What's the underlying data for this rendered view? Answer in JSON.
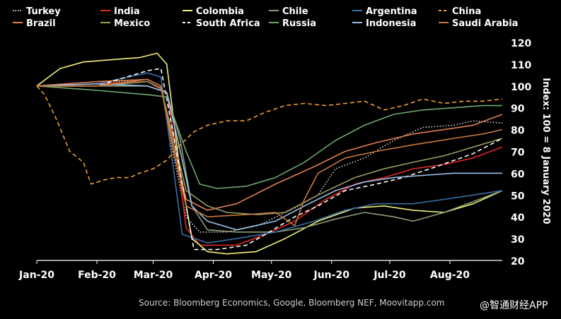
{
  "chart_data": {
    "type": "line",
    "ylabel": "Index: 100 = 8 January 2020",
    "source": "Source: Bloomberg Economics, Google, Bloomberg NEF, Moovitapp.com",
    "watermark": "@智通财经APP",
    "ylim": [
      20,
      120
    ],
    "yticks": [
      20,
      30,
      40,
      50,
      60,
      70,
      80,
      90,
      100,
      110,
      120
    ],
    "xlabels": [
      "Jan-20",
      "Feb-20",
      "Mar-20",
      "Apr-20",
      "May-20",
      "Jun-20",
      "Jul-20",
      "Aug-20"
    ],
    "xtick_dates": [
      "2020-01-08",
      "2020-02-08",
      "2020-03-08",
      "2020-04-08",
      "2020-05-08",
      "2020-06-08",
      "2020-07-08",
      "2020-08-08"
    ],
    "xlim": [
      "2020-01-08",
      "2020-09-04"
    ],
    "grid": false,
    "legend_position": "top",
    "series": [
      {
        "name": "Turkey",
        "color": "#d8d8d8",
        "dash": "dot",
        "points": [
          [
            "2020-01-08",
            100
          ],
          [
            "2020-02-08",
            101
          ],
          [
            "2020-03-05",
            103
          ],
          [
            "2020-03-12",
            100
          ],
          [
            "2020-03-18",
            70
          ],
          [
            "2020-03-25",
            40
          ],
          [
            "2020-04-01",
            33
          ],
          [
            "2020-04-15",
            33
          ],
          [
            "2020-05-01",
            36
          ],
          [
            "2020-05-20",
            44
          ],
          [
            "2020-06-01",
            50
          ],
          [
            "2020-06-10",
            62
          ],
          [
            "2020-06-25",
            67
          ],
          [
            "2020-07-10",
            75
          ],
          [
            "2020-07-25",
            81
          ],
          [
            "2020-08-10",
            82
          ],
          [
            "2020-08-20",
            84
          ],
          [
            "2020-09-04",
            83
          ]
        ]
      },
      {
        "name": "India",
        "color": "#e0282b",
        "dash": "solid",
        "points": [
          [
            "2020-01-08",
            100
          ],
          [
            "2020-02-08",
            101
          ],
          [
            "2020-03-05",
            102
          ],
          [
            "2020-03-15",
            97
          ],
          [
            "2020-03-20",
            70
          ],
          [
            "2020-03-25",
            35
          ],
          [
            "2020-04-01",
            27
          ],
          [
            "2020-04-20",
            27
          ],
          [
            "2020-05-05",
            32
          ],
          [
            "2020-05-20",
            38
          ],
          [
            "2020-06-05",
            48
          ],
          [
            "2020-06-20",
            55
          ],
          [
            "2020-07-05",
            58
          ],
          [
            "2020-07-20",
            62
          ],
          [
            "2020-08-05",
            64
          ],
          [
            "2020-08-20",
            67
          ],
          [
            "2020-09-04",
            72
          ]
        ]
      },
      {
        "name": "Colombia",
        "color": "#f2f07a",
        "dash": "solid",
        "points": [
          [
            "2020-01-08",
            100
          ],
          [
            "2020-01-20",
            108
          ],
          [
            "2020-02-01",
            111
          ],
          [
            "2020-02-15",
            112
          ],
          [
            "2020-03-01",
            113
          ],
          [
            "2020-03-10",
            115
          ],
          [
            "2020-03-15",
            110
          ],
          [
            "2020-03-22",
            60
          ],
          [
            "2020-03-28",
            30
          ],
          [
            "2020-04-05",
            24
          ],
          [
            "2020-04-15",
            23
          ],
          [
            "2020-04-30",
            24
          ],
          [
            "2020-05-15",
            30
          ],
          [
            "2020-06-01",
            38
          ],
          [
            "2020-06-20",
            44
          ],
          [
            "2020-07-05",
            45
          ],
          [
            "2020-07-20",
            43
          ],
          [
            "2020-08-05",
            42
          ],
          [
            "2020-08-20",
            46
          ],
          [
            "2020-09-04",
            52
          ]
        ]
      },
      {
        "name": "Chile",
        "color": "#8e9e78",
        "dash": "solid",
        "points": [
          [
            "2020-01-08",
            100
          ],
          [
            "2020-02-08",
            100
          ],
          [
            "2020-03-05",
            100
          ],
          [
            "2020-03-15",
            97
          ],
          [
            "2020-03-22",
            75
          ],
          [
            "2020-03-28",
            45
          ],
          [
            "2020-04-05",
            34
          ],
          [
            "2020-04-20",
            33
          ],
          [
            "2020-05-10",
            33
          ],
          [
            "2020-05-25",
            35
          ],
          [
            "2020-06-10",
            39
          ],
          [
            "2020-06-25",
            42
          ],
          [
            "2020-07-10",
            40
          ],
          [
            "2020-07-20",
            38
          ],
          [
            "2020-08-05",
            42
          ],
          [
            "2020-08-20",
            47
          ],
          [
            "2020-09-04",
            52
          ]
        ]
      },
      {
        "name": "Argentina",
        "color": "#3a6ea5",
        "dash": "solid",
        "points": [
          [
            "2020-01-08",
            100
          ],
          [
            "2020-02-08",
            101
          ],
          [
            "2020-03-05",
            106
          ],
          [
            "2020-03-12",
            104
          ],
          [
            "2020-03-18",
            65
          ],
          [
            "2020-03-23",
            32
          ],
          [
            "2020-04-05",
            28
          ],
          [
            "2020-04-20",
            30
          ],
          [
            "2020-05-10",
            33
          ],
          [
            "2020-05-30",
            38
          ],
          [
            "2020-06-15",
            43
          ],
          [
            "2020-07-01",
            46
          ],
          [
            "2020-07-20",
            46
          ],
          [
            "2020-08-05",
            48
          ],
          [
            "2020-08-20",
            50
          ],
          [
            "2020-09-04",
            52
          ]
        ]
      },
      {
        "name": "China",
        "color": "#f0a030",
        "dash": "dash",
        "points": [
          [
            "2020-01-08",
            100
          ],
          [
            "2020-01-12",
            96
          ],
          [
            "2020-01-18",
            85
          ],
          [
            "2020-01-25",
            70
          ],
          [
            "2020-02-01",
            65
          ],
          [
            "2020-02-05",
            55
          ],
          [
            "2020-02-12",
            57
          ],
          [
            "2020-02-18",
            58
          ],
          [
            "2020-02-25",
            58
          ],
          [
            "2020-03-01",
            60
          ],
          [
            "2020-03-08",
            62
          ],
          [
            "2020-03-15",
            66
          ],
          [
            "2020-03-22",
            73
          ],
          [
            "2020-03-29",
            79
          ],
          [
            "2020-04-05",
            82
          ],
          [
            "2020-04-15",
            84
          ],
          [
            "2020-04-25",
            84
          ],
          [
            "2020-05-05",
            88
          ],
          [
            "2020-05-15",
            91
          ],
          [
            "2020-05-25",
            92
          ],
          [
            "2020-06-05",
            91
          ],
          [
            "2020-06-15",
            92
          ],
          [
            "2020-06-25",
            93
          ],
          [
            "2020-07-05",
            89
          ],
          [
            "2020-07-15",
            91
          ],
          [
            "2020-07-25",
            94
          ],
          [
            "2020-08-05",
            92
          ],
          [
            "2020-08-15",
            93
          ],
          [
            "2020-08-25",
            93
          ],
          [
            "2020-09-04",
            94
          ]
        ]
      },
      {
        "name": "Brazil",
        "color": "#e08050",
        "dash": "solid",
        "points": [
          [
            "2020-01-08",
            100
          ],
          [
            "2020-02-08",
            102
          ],
          [
            "2020-03-05",
            103
          ],
          [
            "2020-03-12",
            100
          ],
          [
            "2020-03-18",
            75
          ],
          [
            "2020-03-25",
            48
          ],
          [
            "2020-04-05",
            43
          ],
          [
            "2020-04-20",
            46
          ],
          [
            "2020-05-10",
            55
          ],
          [
            "2020-05-30",
            63
          ],
          [
            "2020-06-15",
            70
          ],
          [
            "2020-07-01",
            74
          ],
          [
            "2020-07-20",
            78
          ],
          [
            "2020-08-05",
            80
          ],
          [
            "2020-08-20",
            82
          ],
          [
            "2020-09-04",
            87
          ]
        ]
      },
      {
        "name": "Mexico",
        "color": "#9a9a5e",
        "dash": "solid",
        "points": [
          [
            "2020-01-08",
            100
          ],
          [
            "2020-02-08",
            100
          ],
          [
            "2020-03-05",
            102
          ],
          [
            "2020-03-12",
            99
          ],
          [
            "2020-03-18",
            78
          ],
          [
            "2020-03-25",
            52
          ],
          [
            "2020-04-05",
            45
          ],
          [
            "2020-04-15",
            42
          ],
          [
            "2020-05-01",
            41
          ],
          [
            "2020-05-15",
            42
          ],
          [
            "2020-06-01",
            50
          ],
          [
            "2020-06-20",
            58
          ],
          [
            "2020-07-05",
            62
          ],
          [
            "2020-07-20",
            65
          ],
          [
            "2020-08-05",
            68
          ],
          [
            "2020-08-20",
            72
          ],
          [
            "2020-09-04",
            76
          ]
        ]
      },
      {
        "name": "South Africa",
        "color": "#ffffff",
        "dash": "dash",
        "points": [
          [
            "2020-01-08",
            100
          ],
          [
            "2020-02-08",
            100
          ],
          [
            "2020-03-05",
            107
          ],
          [
            "2020-03-12",
            108
          ],
          [
            "2020-03-18",
            80
          ],
          [
            "2020-03-24",
            50
          ],
          [
            "2020-03-29",
            25
          ],
          [
            "2020-04-10",
            25
          ],
          [
            "2020-04-25",
            27
          ],
          [
            "2020-05-05",
            32
          ],
          [
            "2020-05-20",
            40
          ],
          [
            "2020-06-01",
            45
          ],
          [
            "2020-06-15",
            52
          ],
          [
            "2020-07-01",
            55
          ],
          [
            "2020-07-15",
            58
          ],
          [
            "2020-08-01",
            63
          ],
          [
            "2020-08-20",
            69
          ],
          [
            "2020-09-04",
            76
          ]
        ]
      },
      {
        "name": "Russia",
        "color": "#6fa86f",
        "dash": "solid",
        "points": [
          [
            "2020-01-08",
            100
          ],
          [
            "2020-02-08",
            98
          ],
          [
            "2020-03-05",
            96
          ],
          [
            "2020-03-15",
            95
          ],
          [
            "2020-03-25",
            70
          ],
          [
            "2020-04-01",
            55
          ],
          [
            "2020-04-10",
            53
          ],
          [
            "2020-04-25",
            54
          ],
          [
            "2020-05-10",
            58
          ],
          [
            "2020-05-25",
            65
          ],
          [
            "2020-06-10",
            75
          ],
          [
            "2020-06-25",
            82
          ],
          [
            "2020-07-10",
            87
          ],
          [
            "2020-07-25",
            89
          ],
          [
            "2020-08-10",
            90
          ],
          [
            "2020-08-25",
            91
          ],
          [
            "2020-09-04",
            91
          ]
        ]
      },
      {
        "name": "Indonesia",
        "color": "#9cc0e8",
        "dash": "solid",
        "points": [
          [
            "2020-01-08",
            100
          ],
          [
            "2020-02-08",
            101
          ],
          [
            "2020-03-05",
            100
          ],
          [
            "2020-03-15",
            97
          ],
          [
            "2020-03-22",
            70
          ],
          [
            "2020-03-28",
            45
          ],
          [
            "2020-04-05",
            38
          ],
          [
            "2020-04-20",
            34
          ],
          [
            "2020-05-10",
            38
          ],
          [
            "2020-05-25",
            45
          ],
          [
            "2020-06-10",
            52
          ],
          [
            "2020-06-25",
            56
          ],
          [
            "2020-07-10",
            58
          ],
          [
            "2020-07-25",
            59
          ],
          [
            "2020-08-10",
            60
          ],
          [
            "2020-08-25",
            60
          ],
          [
            "2020-09-04",
            60
          ]
        ]
      },
      {
        "name": "Saudi Arabia",
        "color": "#c87838",
        "dash": "solid",
        "points": [
          [
            "2020-01-08",
            100
          ],
          [
            "2020-02-08",
            100
          ],
          [
            "2020-03-05",
            103
          ],
          [
            "2020-03-12",
            100
          ],
          [
            "2020-03-18",
            72
          ],
          [
            "2020-03-25",
            45
          ],
          [
            "2020-04-05",
            40
          ],
          [
            "2020-04-25",
            41
          ],
          [
            "2020-05-10",
            42
          ],
          [
            "2020-05-20",
            36
          ],
          [
            "2020-05-25",
            48
          ],
          [
            "2020-06-01",
            60
          ],
          [
            "2020-06-15",
            67
          ],
          [
            "2020-07-01",
            70
          ],
          [
            "2020-07-20",
            73
          ],
          [
            "2020-08-10",
            76
          ],
          [
            "2020-08-25",
            78
          ],
          [
            "2020-09-04",
            80
          ]
        ]
      }
    ]
  }
}
